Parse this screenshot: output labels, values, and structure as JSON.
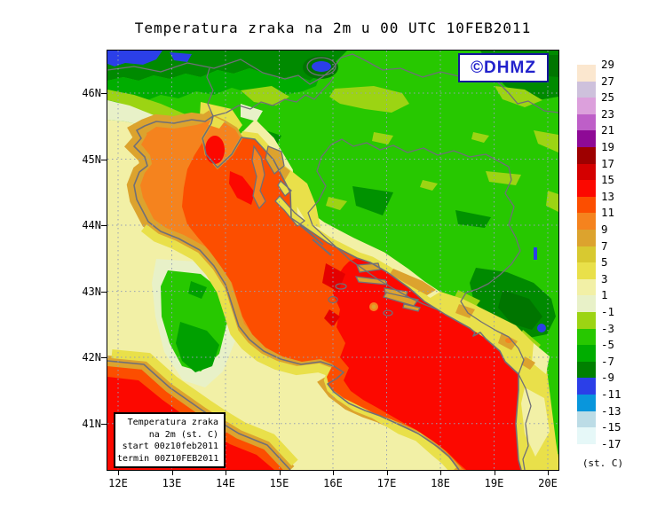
{
  "title": "Temperatura zraka na 2m u 00 UTC 10FEB2011",
  "watermark": {
    "text": "©DHMZ",
    "color": "#2222cc"
  },
  "axes": {
    "lat": [
      "46N",
      "45N",
      "44N",
      "43N",
      "42N",
      "41N"
    ],
    "lon": [
      "12E",
      "13E",
      "14E",
      "15E",
      "16E",
      "17E",
      "18E",
      "19E",
      "20E"
    ]
  },
  "colorbar": {
    "unit": "(st. C)",
    "ticks": [
      "29",
      "27",
      "25",
      "23",
      "21",
      "19",
      "17",
      "15",
      "13",
      "11",
      "9",
      "7",
      "5",
      "3",
      "1",
      "-1",
      "-3",
      "-5",
      "-7",
      "-9",
      "-11",
      "-13",
      "-15",
      "-17"
    ],
    "colors": [
      "#FBE7CF",
      "#CEC1DC",
      "#DCA0DC",
      "#BE5FC8",
      "#8E0A96",
      "#9E0000",
      "#D40000",
      "#FC0800",
      "#FC4E00",
      "#F5831E",
      "#DCA32E",
      "#D8C930",
      "#E9E04A",
      "#F2F0A6",
      "#E8F1C8",
      "#9CD413",
      "#27C800",
      "#00AD00",
      "#008000",
      "#2B3FE8",
      "#0996DC",
      "#BCDCE6",
      "#E6F8F8"
    ]
  },
  "legend_box": {
    "lines": [
      "Temperatura zraka",
      "na 2m (st. C)",
      "start 00z10feb2011",
      "termin 00Z10FEB2011"
    ]
  },
  "map_palette": {
    "land_green": "#27C800",
    "land_yellow_green": "#9CD413",
    "land_dark_green": "#008F00",
    "cold_blue": "#2B3FE8",
    "po_valley_cream": "#E8F1C8",
    "pale_yellow": "#F2F0A6",
    "yellow": "#E9E04A",
    "gold": "#DCA32E",
    "sea_orange": "#F5831E",
    "sea_orange_red": "#FC4E00",
    "sea_red": "#FC0800",
    "coastline_gray": "#6F6F78"
  }
}
